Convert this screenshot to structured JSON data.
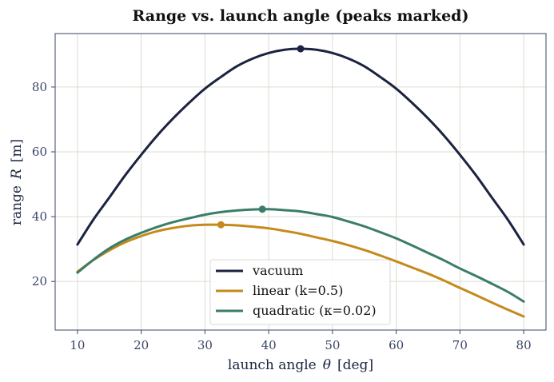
{
  "chart_data": {
    "type": "line",
    "title": "Range vs. launch angle (peaks marked)",
    "xlabel": "launch angle",
    "xlabel_symbol": "θ",
    "xlabel_unit": "[deg]",
    "ylabel": "range",
    "ylabel_symbol": "R",
    "ylabel_unit": "[m]",
    "xlim": [
      6.5,
      83.5
    ],
    "ylim": [
      5.0,
      96.5
    ],
    "xticks": [
      10,
      20,
      30,
      40,
      50,
      60,
      70,
      80
    ],
    "yticks": [
      20,
      40,
      60,
      80
    ],
    "grid": true,
    "legend_position": "bottom-center",
    "series": [
      {
        "name": "vacuum",
        "color": "#1b2340",
        "x": [
          10,
          12.5,
          15,
          17.5,
          20,
          22.5,
          25,
          27.5,
          30,
          32.5,
          35,
          37.5,
          40,
          42.5,
          45,
          47.5,
          50,
          52.5,
          55,
          57.5,
          60,
          62.5,
          65,
          67.5,
          70,
          72.5,
          75,
          77.5,
          80
        ],
        "y": [
          31.4,
          39.1,
          45.9,
          52.8,
          59.1,
          65.0,
          70.3,
          75.1,
          79.5,
          83.1,
          86.4,
          88.8,
          90.5,
          91.5,
          91.8,
          91.5,
          90.5,
          88.8,
          86.4,
          83.1,
          79.5,
          75.1,
          70.3,
          65.0,
          59.1,
          52.8,
          45.9,
          39.1,
          31.4
        ],
        "peak": {
          "x": 45.0,
          "y": 91.8
        }
      },
      {
        "name": "linear (k=0.5)",
        "color": "#c58a1c",
        "x": [
          10,
          12.5,
          15,
          17.5,
          20,
          22.5,
          25,
          27.5,
          30,
          32.5,
          35,
          37.5,
          40,
          42.5,
          45,
          47.5,
          50,
          52.5,
          55,
          57.5,
          60,
          62.5,
          65,
          67.5,
          70,
          72.5,
          75,
          77.5,
          80
        ],
        "y": [
          23.0,
          26.6,
          29.6,
          32.1,
          34.0,
          35.5,
          36.5,
          37.2,
          37.5,
          37.5,
          37.3,
          36.9,
          36.4,
          35.6,
          34.7,
          33.6,
          32.5,
          31.2,
          29.7,
          28.0,
          26.2,
          24.3,
          22.4,
          20.3,
          18.0,
          15.8,
          13.5,
          11.3,
          9.2
        ],
        "peak": {
          "x": 32.5,
          "y": 37.5
        }
      },
      {
        "name": "quadratic (κ=0.02)",
        "color": "#3a7d68",
        "x": [
          10,
          12.5,
          15,
          17.5,
          20,
          22.5,
          25,
          27.5,
          30,
          32.5,
          35,
          37.5,
          40,
          42.5,
          45,
          47.5,
          50,
          52.5,
          55,
          57.5,
          60,
          62.5,
          65,
          67.5,
          70,
          72.5,
          75,
          77.5,
          80
        ],
        "y": [
          22.7,
          26.7,
          30.2,
          32.9,
          35.0,
          36.8,
          38.3,
          39.5,
          40.6,
          41.4,
          41.9,
          42.2,
          42.3,
          42.0,
          41.6,
          40.8,
          39.9,
          38.5,
          37.0,
          35.2,
          33.3,
          31.1,
          28.8,
          26.5,
          24.0,
          21.7,
          19.3,
          16.8,
          13.8
        ],
        "peak": {
          "x": 39.0,
          "y": 42.3
        }
      }
    ]
  }
}
